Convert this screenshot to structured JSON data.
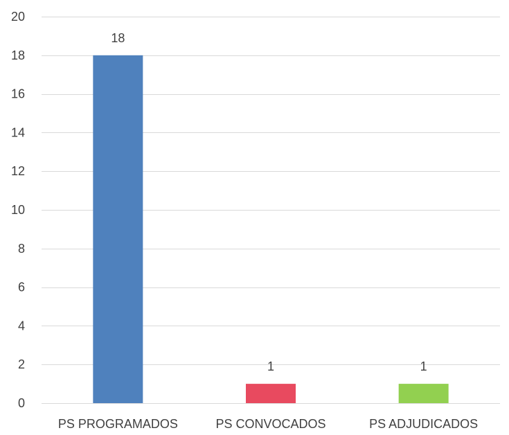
{
  "chart_data": {
    "type": "bar",
    "categories": [
      "PS PROGRAMADOS",
      "PS CONVOCADOS",
      "PS ADJUDICADOS"
    ],
    "values": [
      18,
      1,
      1
    ],
    "data_labels": [
      "18",
      "1",
      "1"
    ],
    "bar_colors": [
      "#4f81bd",
      "#e84a5f",
      "#92d050"
    ],
    "title": "",
    "xlabel": "",
    "ylabel": "",
    "ylim": [
      0,
      20
    ],
    "y_ticks": [
      0,
      2,
      4,
      6,
      8,
      10,
      12,
      14,
      16,
      18,
      20
    ],
    "y_tick_labels": [
      "0",
      "2",
      "4",
      "6",
      "8",
      "10",
      "12",
      "14",
      "16",
      "18",
      "20"
    ],
    "grid": true,
    "legend": "none",
    "gridline_color": "#d9d9d9",
    "axis_color": "#d9d9d9"
  }
}
